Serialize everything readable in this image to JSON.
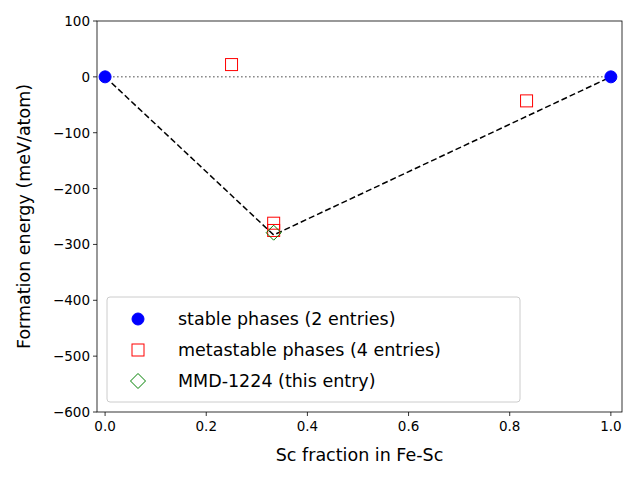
{
  "chart_data": {
    "type": "scatter",
    "x_label": "Sc fraction in Fe-Sc",
    "y_label": "Formation energy (meV/atom)",
    "xlim": [
      -0.016,
      1.022
    ],
    "ylim": [
      -600,
      100
    ],
    "xticks": [
      {
        "value": 0,
        "label": "0.0"
      },
      {
        "value": 0.2,
        "label": "0.2"
      },
      {
        "value": 0.4,
        "label": "0.4"
      },
      {
        "value": 0.6,
        "label": "0.6"
      },
      {
        "value": 0.8,
        "label": "0.8"
      },
      {
        "value": 1,
        "label": "1.0"
      }
    ],
    "yticks": [
      {
        "value": -600,
        "label": "−600"
      },
      {
        "value": -500,
        "label": "−500"
      },
      {
        "value": -400,
        "label": "−400"
      },
      {
        "value": -300,
        "label": "−300"
      },
      {
        "value": -200,
        "label": "−200"
      },
      {
        "value": -100,
        "label": "−100"
      },
      0,
      100
    ],
    "legend": "lower left",
    "grid": false,
    "series": [
      {
        "type": "line",
        "line_style": "dotted",
        "color": "#808080",
        "x": [
          0,
          1
        ],
        "values": [
          0,
          0
        ]
      },
      {
        "type": "line",
        "line_style": "dashed",
        "color": "#000000",
        "x": [
          0,
          0.3333,
          1
        ],
        "values": [
          0,
          -283,
          0
        ]
      },
      {
        "name": "stable phases (2 entries)",
        "type": "scatter",
        "marker": "circle",
        "color": "#0000ff",
        "x": [
          0,
          1
        ],
        "values": [
          0,
          0
        ]
      },
      {
        "name": "metastable phases (4 entries)",
        "type": "scatter",
        "marker": "square-open",
        "color": "#ff0000",
        "x": [
          0.25,
          0.3333,
          0.3333,
          0.8333
        ],
        "values": [
          22,
          -262,
          -275,
          -43
        ]
      },
      {
        "name": "MMD-1224 (this entry)",
        "type": "scatter",
        "marker": "diamond-open",
        "color": "#008000",
        "x": [
          0.3333
        ],
        "values": [
          -279
        ]
      }
    ]
  }
}
